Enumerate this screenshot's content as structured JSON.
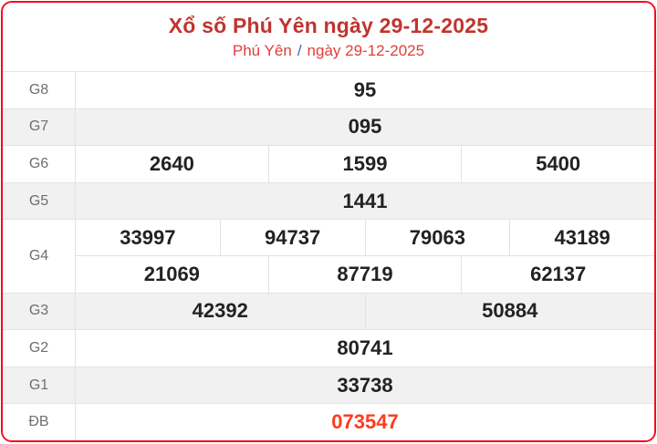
{
  "header": {
    "title": "Xổ số Phú Yên ngày 29-12-2025",
    "breadcrumb": {
      "province": "Phú Yên",
      "separator": "/",
      "date": "ngày 29-12-2025"
    }
  },
  "table": {
    "rows": [
      {
        "label": "G8",
        "shade": false,
        "special": false,
        "lines": [
          [
            "95"
          ]
        ]
      },
      {
        "label": "G7",
        "shade": true,
        "special": false,
        "lines": [
          [
            "095"
          ]
        ]
      },
      {
        "label": "G6",
        "shade": false,
        "special": false,
        "lines": [
          [
            "2640",
            "1599",
            "5400"
          ]
        ]
      },
      {
        "label": "G5",
        "shade": true,
        "special": false,
        "lines": [
          [
            "1441"
          ]
        ]
      },
      {
        "label": "G4",
        "shade": false,
        "special": false,
        "lines": [
          [
            "33997",
            "94737",
            "79063",
            "43189"
          ],
          [
            "21069",
            "87719",
            "62137"
          ]
        ]
      },
      {
        "label": "G3",
        "shade": true,
        "special": false,
        "lines": [
          [
            "42392",
            "50884"
          ]
        ]
      },
      {
        "label": "G2",
        "shade": false,
        "special": false,
        "lines": [
          [
            "80741"
          ]
        ]
      },
      {
        "label": "G1",
        "shade": true,
        "special": false,
        "lines": [
          [
            "33738"
          ]
        ]
      },
      {
        "label": "ĐB",
        "shade": false,
        "special": true,
        "lines": [
          [
            "073547"
          ]
        ]
      }
    ]
  },
  "colors": {
    "border_red": "#f40b1e",
    "title_red": "#c0342e",
    "subtitle_red": "#e23e38",
    "slash_blue": "#3b63c4",
    "special_red": "#fd3b1e",
    "shade_gray": "#f1f1f2",
    "line_gray": "#e3e3e3",
    "number_dark": "#222222",
    "label_gray": "#6e6e6e"
  }
}
